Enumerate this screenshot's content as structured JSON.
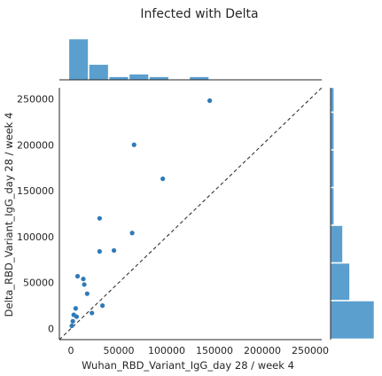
{
  "chart_data": {
    "type": "scatter",
    "title": "Infected with Delta",
    "xlabel": "Wuhan_RBD_Variant_IgG_day 28 / week 4",
    "ylabel": "Delta_RBD_Variant_IgG_day 28 / week 4",
    "xlim": [
      -12000,
      262000
    ],
    "ylim": [
      -12000,
      262000
    ],
    "x_ticks": [
      0,
      50000,
      100000,
      150000,
      200000,
      250000
    ],
    "y_ticks": [
      0,
      50000,
      100000,
      150000,
      200000,
      250000
    ],
    "reference_line": "y = x (dashed)",
    "grid": false,
    "points": [
      {
        "x": 145000,
        "y": 248000
      },
      {
        "x": 66000,
        "y": 200000
      },
      {
        "x": 96000,
        "y": 163000
      },
      {
        "x": 30000,
        "y": 120000
      },
      {
        "x": 64000,
        "y": 104000
      },
      {
        "x": 30000,
        "y": 84000
      },
      {
        "x": 45000,
        "y": 85000
      },
      {
        "x": 7000,
        "y": 57000
      },
      {
        "x": 13000,
        "y": 54000
      },
      {
        "x": 14000,
        "y": 48000
      },
      {
        "x": 17000,
        "y": 38000
      },
      {
        "x": 33000,
        "y": 25000
      },
      {
        "x": 5000,
        "y": 22000
      },
      {
        "x": 3000,
        "y": 15000
      },
      {
        "x": 22000,
        "y": 17000
      },
      {
        "x": 6000,
        "y": 13000
      },
      {
        "x": 2000,
        "y": 8000
      },
      {
        "x": 1000,
        "y": 3000
      }
    ],
    "x_marginal_hist": {
      "bin_edges": [
        -2000,
        19000,
        40000,
        61000,
        82000,
        103000,
        124000,
        145000,
        166000
      ],
      "counts": [
        8,
        3,
        0.6,
        1.1,
        0.6,
        0,
        0.6,
        0
      ]
    },
    "y_marginal_hist": {
      "bin_edges": [
        -12000,
        30000,
        71000,
        112000,
        153000,
        194000,
        235000,
        262000
      ],
      "counts": [
        8,
        3.5,
        2.2,
        0.6,
        0.6,
        0.6,
        0.6
      ]
    },
    "colors": {
      "points": "#2f7ab8",
      "hist_fill": "#5b9fcf",
      "axes": "#262626",
      "reference_line": "#333333"
    }
  }
}
